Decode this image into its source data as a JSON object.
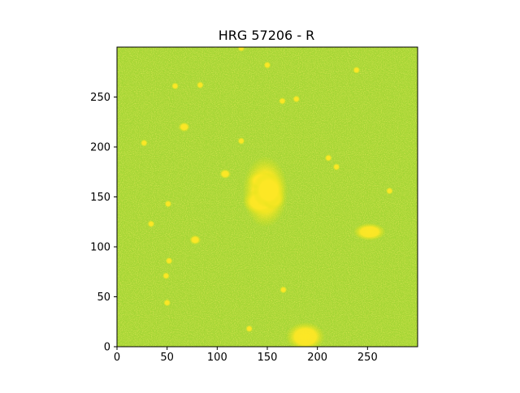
{
  "chart_data": {
    "type": "heatmap",
    "title": "HRG 57206 - R",
    "xlabel": "",
    "ylabel": "",
    "xlim": [
      0,
      300
    ],
    "ylim": [
      0,
      300
    ],
    "x_ticks": [
      0,
      50,
      100,
      150,
      200,
      250
    ],
    "y_ticks": [
      0,
      50,
      100,
      150,
      200,
      250
    ],
    "grid": false,
    "colormap": "viridis (upper range: green to yellow)",
    "background_color": "#a6d634",
    "source_color": "#fde725",
    "sources": [
      {
        "x": 148,
        "y": 155,
        "label": "central extended source"
      },
      {
        "x": 252,
        "y": 115,
        "label": "bright source"
      },
      {
        "x": 188,
        "y": 10,
        "label": "bright source at lower edge"
      },
      {
        "x": 78,
        "y": 107
      },
      {
        "x": 67,
        "y": 220
      },
      {
        "x": 108,
        "y": 173
      },
      {
        "x": 34,
        "y": 123
      },
      {
        "x": 166,
        "y": 57
      },
      {
        "x": 51,
        "y": 143
      },
      {
        "x": 49,
        "y": 71
      },
      {
        "x": 52,
        "y": 86
      },
      {
        "x": 124,
        "y": 299
      },
      {
        "x": 150,
        "y": 282
      },
      {
        "x": 58,
        "y": 261
      },
      {
        "x": 83,
        "y": 262
      },
      {
        "x": 124,
        "y": 206
      },
      {
        "x": 219,
        "y": 180
      },
      {
        "x": 272,
        "y": 156
      },
      {
        "x": 239,
        "y": 277
      },
      {
        "x": 50,
        "y": 44
      },
      {
        "x": 27,
        "y": 204
      },
      {
        "x": 132,
        "y": 18
      },
      {
        "x": 165,
        "y": 246
      },
      {
        "x": 179,
        "y": 248
      },
      {
        "x": 211,
        "y": 189
      }
    ]
  }
}
